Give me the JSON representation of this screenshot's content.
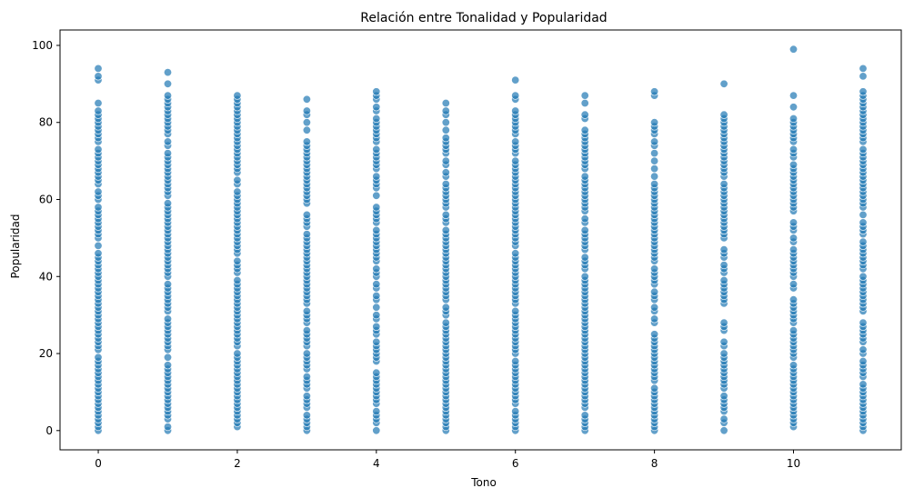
{
  "chart_data": {
    "type": "scatter",
    "title": "Relación entre Tonalidad y Popularidad",
    "xlabel": "Tono",
    "ylabel": "Popularidad",
    "xlim": [
      -0.55,
      11.55
    ],
    "ylim": [
      -5,
      104
    ],
    "xticks": [
      0,
      2,
      4,
      6,
      8,
      10
    ],
    "yticks": [
      0,
      20,
      40,
      60,
      80,
      100
    ],
    "grid": false,
    "marker_color": "#1f77b4",
    "marker_edge_color": "#ffffff",
    "marker_alpha": 0.7,
    "series": [
      {
        "points_by_x": [
          {
            "x": 0,
            "y_range": [
              0,
              83
            ],
            "outliers": [
              85,
              91,
              92,
              94
            ]
          },
          {
            "x": 1,
            "y_range": [
              0,
              87
            ],
            "outliers": [
              90,
              93
            ]
          },
          {
            "x": 2,
            "y_range": [
              0,
              85
            ],
            "outliers": [
              86,
              87
            ]
          },
          {
            "x": 3,
            "y_range": [
              0,
              76
            ],
            "outliers": [
              78,
              80,
              82,
              83,
              86
            ]
          },
          {
            "x": 4,
            "y_range": [
              0,
              84
            ],
            "outliers": [
              86,
              87,
              88
            ]
          },
          {
            "x": 5,
            "y_range": [
              0,
              85
            ],
            "outliers": []
          },
          {
            "x": 6,
            "y_range": [
              0,
              83
            ],
            "outliers": [
              86,
              87,
              91
            ]
          },
          {
            "x": 7,
            "y_range": [
              0,
              82
            ],
            "outliers": [
              85,
              87
            ]
          },
          {
            "x": 8,
            "y_range": [
              0,
              80
            ],
            "outliers": [
              87,
              88
            ]
          },
          {
            "x": 9,
            "y_range": [
              0,
              82
            ],
            "outliers": [
              90
            ]
          },
          {
            "x": 10,
            "y_range": [
              0,
              81
            ],
            "outliers": [
              84,
              87,
              99
            ]
          },
          {
            "x": 11,
            "y_range": [
              0,
              88
            ],
            "outliers": [
              92,
              94
            ]
          }
        ]
      }
    ]
  }
}
